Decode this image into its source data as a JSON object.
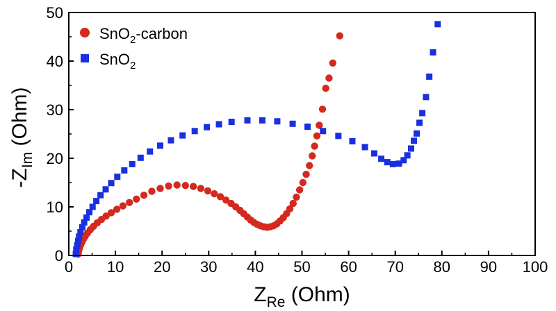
{
  "chart_data": {
    "type": "scatter",
    "xlim": [
      0,
      100
    ],
    "ylim": [
      0,
      50
    ],
    "x_ticks": [
      0,
      10,
      20,
      30,
      40,
      50,
      60,
      70,
      80,
      90,
      100
    ],
    "y_ticks": [
      0,
      10,
      20,
      30,
      40,
      50
    ],
    "xlabel": {
      "main": "Z",
      "sub": "Re",
      "rest": " (Ohm)"
    },
    "ylabel": {
      "main": "-Z",
      "sub": "Im",
      "rest": " (Ohm)"
    },
    "legend_position": "top-left",
    "grid": false,
    "series": [
      {
        "name": {
          "main": "SnO",
          "sub": "2",
          "rest": "-carbon"
        },
        "marker": "circle",
        "color": "#d42a1e",
        "points": [
          [
            2.0,
            0.3
          ],
          [
            2.1,
            0.9
          ],
          [
            2.3,
            1.5
          ],
          [
            2.5,
            2.1
          ],
          [
            2.8,
            2.7
          ],
          [
            3.1,
            3.3
          ],
          [
            3.5,
            3.9
          ],
          [
            4.0,
            4.6
          ],
          [
            4.6,
            5.3
          ],
          [
            5.3,
            6.0
          ],
          [
            6.1,
            6.7
          ],
          [
            7.0,
            7.4
          ],
          [
            8.0,
            8.1
          ],
          [
            9.1,
            8.8
          ],
          [
            10.3,
            9.5
          ],
          [
            11.6,
            10.2
          ],
          [
            13.0,
            10.9
          ],
          [
            14.5,
            11.6
          ],
          [
            16.1,
            12.4
          ],
          [
            17.8,
            13.2
          ],
          [
            19.6,
            13.8
          ],
          [
            21.4,
            14.3
          ],
          [
            23.2,
            14.5
          ],
          [
            25.0,
            14.4
          ],
          [
            26.7,
            14.2
          ],
          [
            28.3,
            13.8
          ],
          [
            29.8,
            13.3
          ],
          [
            31.2,
            12.7
          ],
          [
            32.5,
            12.1
          ],
          [
            33.7,
            11.4
          ],
          [
            34.8,
            10.7
          ],
          [
            35.8,
            10.0
          ],
          [
            36.7,
            9.3
          ],
          [
            37.5,
            8.6
          ],
          [
            38.3,
            7.9
          ],
          [
            39.0,
            7.3
          ],
          [
            39.7,
            6.8
          ],
          [
            40.4,
            6.4
          ],
          [
            41.1,
            6.1
          ],
          [
            41.8,
            5.9
          ],
          [
            42.5,
            5.8
          ],
          [
            43.2,
            5.9
          ],
          [
            43.9,
            6.1
          ],
          [
            44.6,
            6.5
          ],
          [
            45.3,
            7.1
          ],
          [
            46.0,
            7.8
          ],
          [
            46.7,
            8.6
          ],
          [
            47.4,
            9.6
          ],
          [
            48.1,
            10.7
          ],
          [
            48.8,
            12.0
          ],
          [
            49.5,
            13.5
          ],
          [
            50.2,
            15.0
          ],
          [
            50.9,
            16.7
          ],
          [
            51.6,
            18.5
          ],
          [
            52.2,
            20.5
          ],
          [
            52.7,
            22.5
          ],
          [
            53.2,
            24.6
          ],
          [
            53.7,
            26.8
          ],
          [
            54.4,
            30.1
          ],
          [
            55.1,
            34.4
          ],
          [
            55.8,
            36.5
          ],
          [
            56.6,
            39.6
          ],
          [
            58.1,
            45.2
          ]
        ]
      },
      {
        "name": {
          "main": "SnO",
          "sub": "2",
          "rest": ""
        },
        "marker": "square",
        "color": "#1a2fe0",
        "points": [
          [
            1.5,
            0.3
          ],
          [
            1.6,
            1.2
          ],
          [
            1.8,
            2.1
          ],
          [
            2.0,
            3.0
          ],
          [
            2.2,
            3.9
          ],
          [
            2.5,
            4.8
          ],
          [
            2.9,
            5.8
          ],
          [
            3.3,
            6.8
          ],
          [
            3.8,
            7.8
          ],
          [
            4.4,
            8.9
          ],
          [
            5.1,
            10.0
          ],
          [
            5.9,
            11.2
          ],
          [
            6.8,
            12.4
          ],
          [
            7.9,
            13.6
          ],
          [
            9.1,
            14.9
          ],
          [
            10.4,
            16.2
          ],
          [
            11.9,
            17.5
          ],
          [
            13.6,
            18.8
          ],
          [
            15.4,
            20.1
          ],
          [
            17.4,
            21.4
          ],
          [
            19.6,
            22.6
          ],
          [
            21.9,
            23.7
          ],
          [
            24.4,
            24.7
          ],
          [
            27.0,
            25.6
          ],
          [
            29.6,
            26.4
          ],
          [
            32.2,
            27.0
          ],
          [
            34.9,
            27.5
          ],
          [
            38.3,
            27.8
          ],
          [
            41.5,
            27.8
          ],
          [
            44.7,
            27.6
          ],
          [
            48.0,
            27.1
          ],
          [
            51.2,
            26.5
          ],
          [
            54.5,
            25.6
          ],
          [
            57.8,
            24.6
          ],
          [
            60.8,
            23.5
          ],
          [
            63.5,
            22.3
          ],
          [
            65.5,
            21.0
          ],
          [
            67.0,
            19.9
          ],
          [
            68.3,
            19.2
          ],
          [
            69.5,
            18.8
          ],
          [
            70.8,
            18.9
          ],
          [
            71.8,
            19.6
          ],
          [
            72.6,
            20.6
          ],
          [
            73.4,
            22.0
          ],
          [
            74.0,
            23.6
          ],
          [
            74.6,
            25.1
          ],
          [
            75.2,
            27.3
          ],
          [
            75.8,
            29.3
          ],
          [
            76.6,
            32.6
          ],
          [
            77.3,
            36.8
          ],
          [
            78.1,
            41.8
          ],
          [
            79.1,
            47.6
          ]
        ]
      }
    ]
  }
}
